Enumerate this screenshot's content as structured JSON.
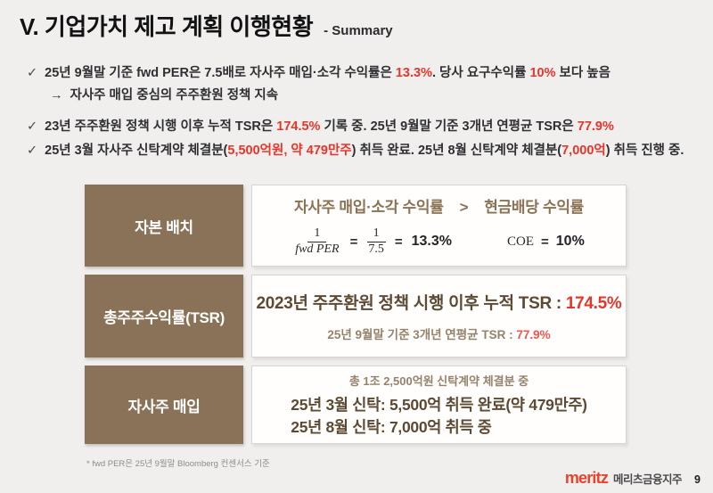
{
  "header": {
    "title": "V. 기업가치 제고 계획 이행현황",
    "subtitle": "- Summary"
  },
  "bullets": [
    {
      "marker": "✓",
      "segments": [
        {
          "text": "25년 9월말 기준 fwd PER은 7.5배로 자사주 매입·소각 수익률은 "
        },
        {
          "text": "13.3%",
          "em": true
        },
        {
          "text": ". 당사 요구수익률 "
        },
        {
          "text": "10%",
          "em": true
        },
        {
          "text": " 보다 높음"
        }
      ]
    },
    {
      "marker": "→",
      "segments": [
        {
          "text": "자사주 매입 중심의 주주환원 정책 지속"
        }
      ]
    },
    {
      "marker": "✓",
      "segments": [
        {
          "text": "23년 주주환원 정책 시행 이후 누적 TSR은 "
        },
        {
          "text": "174.5%",
          "em": true
        },
        {
          "text": " 기록 중. 25년 9월말 기준 3개년 연평균 TSR은 "
        },
        {
          "text": "77.9%",
          "em": true
        }
      ]
    },
    {
      "marker": "✓",
      "segments": [
        {
          "text": "25년 3월 자사주 신탁계약 체결분("
        },
        {
          "text": "5,500억원, 약 479만주",
          "em": true
        },
        {
          "text": ") 취득 완료. 25년 8월 신탁계약 체결분("
        },
        {
          "text": "7,000억",
          "em": true
        },
        {
          "text": ") 취득 진행 중."
        }
      ]
    }
  ],
  "rows": {
    "capital": {
      "label": "자본 배치",
      "headline_left": "자사주 매입·소각 수익률",
      "comparator": ">",
      "headline_right": "현금배당 수익률",
      "formula": {
        "num1": "1",
        "den1": "fwd PER",
        "eq1": "=",
        "num2": "1",
        "den2": "7.5",
        "eq2": "=",
        "result": "13.3%",
        "coe_label": "COE",
        "coe_eq": "=",
        "coe_value": "10%"
      }
    },
    "tsr": {
      "label": "총주주수익률(TSR)",
      "line1_text": "2023년 주주환원 정책 시행 이후 누적 TSR : ",
      "line1_value": "174.5%",
      "line2_text": "25년 9월말 기준 3개년 연평균 TSR : ",
      "line2_value": "77.9%"
    },
    "buyback": {
      "label": "자사주 매입",
      "line1": "총 1조 2,500억원 신탁계약 체결분 중",
      "line2": "25년 3월 신탁: 5,500억 취득 완료(약 479만주)",
      "line3": "25년 8월 신탁: 7,000억 취득 중"
    }
  },
  "footnote": "* fwd PER은 25년 9월말 Bloomberg 컨센서스 기준",
  "footer": {
    "brand": "meritz",
    "company": "메리츠금융지주",
    "page": "9"
  },
  "colors": {
    "accent_red": "#e8352a",
    "label_brown": "#897257",
    "text_brown_dark": "#5d4a34",
    "text_brown_light": "#95826b",
    "background": "#f0efed"
  }
}
